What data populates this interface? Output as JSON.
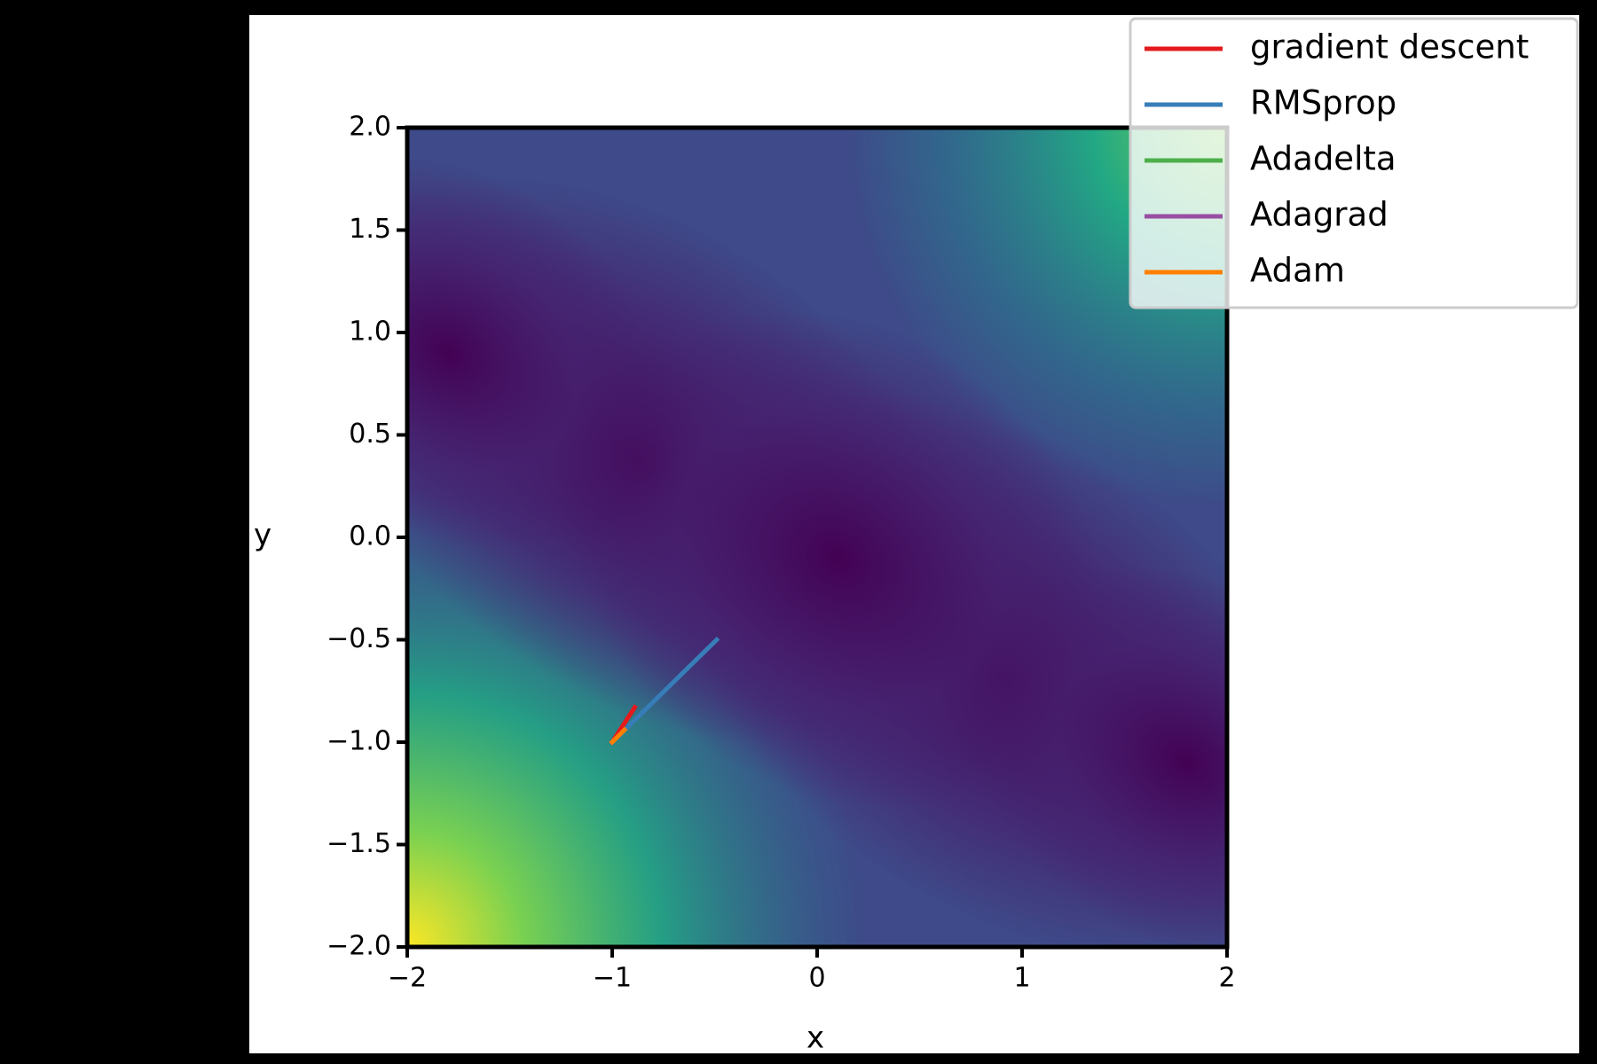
{
  "chart_data": {
    "type": "line",
    "x_label": "x",
    "y_label": "y",
    "xlim": [
      -2,
      2
    ],
    "ylim": [
      -2,
      2
    ],
    "xticks": [
      {
        "value": -2,
        "label": "−2"
      },
      {
        "value": -1,
        "label": "−1"
      },
      0,
      1,
      2
    ],
    "yticks": [
      {
        "value": -2,
        "label": "−2.0"
      },
      {
        "value": -1.5,
        "label": "−1.5"
      },
      {
        "value": -1,
        "label": "−1.0"
      },
      {
        "value": -0.5,
        "label": "−0.5"
      },
      {
        "value": 0,
        "label": "0.0"
      },
      {
        "value": 0.5,
        "label": "0.5"
      },
      {
        "value": 1,
        "label": "1.0"
      },
      {
        "value": 1.5,
        "label": "1.5"
      },
      {
        "value": 2,
        "label": "2.0"
      }
    ],
    "legend": "upper right",
    "series": [
      {
        "name": "gradient descent",
        "color": "#e41a1c",
        "x": [
          -1,
          -0.89
        ],
        "values": [
          -1,
          -0.83
        ]
      },
      {
        "name": "RMSprop",
        "color": "#377eb8",
        "x": [
          -1,
          -0.49
        ],
        "values": [
          -1,
          -0.5
        ]
      },
      {
        "name": "Adadelta",
        "color": "#4daf4a",
        "x": [
          -1,
          -0.99
        ],
        "values": [
          -1,
          -0.99
        ]
      },
      {
        "name": "Adagrad",
        "color": "#984ea3",
        "x": [
          -1,
          -0.99
        ],
        "values": [
          -1,
          -0.99
        ]
      },
      {
        "name": "Adam",
        "color": "#ff7f00",
        "x": [
          -1,
          -0.94
        ],
        "values": [
          -1,
          -0.94
        ]
      }
    ]
  }
}
